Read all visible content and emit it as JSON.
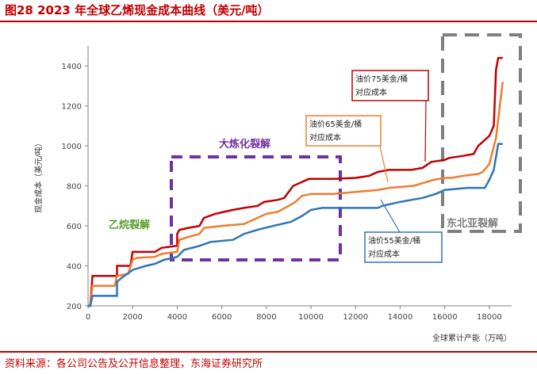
{
  "figure": {
    "title": "图28  2023 年全球乙烯现金成本曲线（美元/吨）",
    "source": "资料来源：各公司公告及公开信息整理，东海证券研究所"
  },
  "colors": {
    "accent": "#c00000",
    "series_75": "#c00000",
    "series_65": "#ed7d31",
    "series_55": "#2e75b6",
    "region_refining": "#7030a0",
    "region_ethane": "#5b9b2a",
    "region_ne_asia": "#7f7f7f"
  },
  "chart_data": {
    "type": "line",
    "xlabel": "全球累计产能（万吨）",
    "ylabel": "现金成本（美元/吨）",
    "xlim": [
      0,
      19000
    ],
    "ylim": [
      200,
      1500
    ],
    "xticks": [
      0,
      2000,
      4000,
      6000,
      8000,
      10000,
      12000,
      14000,
      16000,
      18000
    ],
    "yticks": [
      200,
      400,
      600,
      800,
      1000,
      1200,
      1400
    ],
    "grid": false,
    "series": [
      {
        "key": "s75",
        "name": "油价75美金/桶对应成本",
        "label_lines": [
          "油价75美金/桶",
          "对应成本"
        ],
        "points": [
          [
            0,
            200
          ],
          [
            100,
            200
          ],
          [
            200,
            350
          ],
          [
            1300,
            350
          ],
          [
            1300,
            400
          ],
          [
            1900,
            400
          ],
          [
            2000,
            470
          ],
          [
            3000,
            470
          ],
          [
            3300,
            490
          ],
          [
            3600,
            495
          ],
          [
            4000,
            500
          ],
          [
            4000,
            560
          ],
          [
            4100,
            580
          ],
          [
            4500,
            590
          ],
          [
            5000,
            600
          ],
          [
            5200,
            640
          ],
          [
            5700,
            660
          ],
          [
            6100,
            670
          ],
          [
            6500,
            680
          ],
          [
            7000,
            690
          ],
          [
            7600,
            700
          ],
          [
            7900,
            720
          ],
          [
            8500,
            730
          ],
          [
            8800,
            740
          ],
          [
            9200,
            800
          ],
          [
            9600,
            820
          ],
          [
            9900,
            835
          ],
          [
            10500,
            835
          ],
          [
            11000,
            835
          ],
          [
            12000,
            840
          ],
          [
            12600,
            850
          ],
          [
            13000,
            870
          ],
          [
            13500,
            880
          ],
          [
            14500,
            880
          ],
          [
            15000,
            890
          ],
          [
            15400,
            920
          ],
          [
            16000,
            930
          ],
          [
            16200,
            940
          ],
          [
            16800,
            950
          ],
          [
            17300,
            960
          ],
          [
            17500,
            1000
          ],
          [
            18000,
            1050
          ],
          [
            18200,
            1100
          ],
          [
            18300,
            1380
          ],
          [
            18400,
            1440
          ],
          [
            18600,
            1440
          ]
        ]
      },
      {
        "key": "s65",
        "name": "油价65美金/桶对应成本",
        "label_lines": [
          "油价65美金/桶",
          "对应成本"
        ],
        "points": [
          [
            0,
            200
          ],
          [
            100,
            200
          ],
          [
            200,
            300
          ],
          [
            1200,
            300
          ],
          [
            1300,
            350
          ],
          [
            1800,
            360
          ],
          [
            2000,
            430
          ],
          [
            2200,
            440
          ],
          [
            3000,
            445
          ],
          [
            3300,
            460
          ],
          [
            4000,
            470
          ],
          [
            4100,
            530
          ],
          [
            4500,
            545
          ],
          [
            5000,
            560
          ],
          [
            5200,
            590
          ],
          [
            6000,
            600
          ],
          [
            7000,
            610
          ],
          [
            7600,
            640
          ],
          [
            8000,
            660
          ],
          [
            8500,
            670
          ],
          [
            9000,
            700
          ],
          [
            9300,
            720
          ],
          [
            9600,
            750
          ],
          [
            10000,
            760
          ],
          [
            11000,
            760
          ],
          [
            12000,
            770
          ],
          [
            13000,
            780
          ],
          [
            13500,
            790
          ],
          [
            14600,
            800
          ],
          [
            15500,
            830
          ],
          [
            16000,
            840
          ],
          [
            16300,
            840
          ],
          [
            16800,
            850
          ],
          [
            17500,
            860
          ],
          [
            17700,
            870
          ],
          [
            18000,
            910
          ],
          [
            18300,
            1040
          ],
          [
            18600,
            1320
          ]
        ]
      },
      {
        "key": "s55",
        "name": "油价55美金/桶对应成本",
        "label_lines": [
          "油价55美金/桶",
          "对应成本"
        ],
        "points": [
          [
            0,
            200
          ],
          [
            100,
            200
          ],
          [
            200,
            250
          ],
          [
            1300,
            250
          ],
          [
            1300,
            320
          ],
          [
            1500,
            340
          ],
          [
            2000,
            380
          ],
          [
            2600,
            400
          ],
          [
            3000,
            410
          ],
          [
            3400,
            430
          ],
          [
            4000,
            445
          ],
          [
            4300,
            480
          ],
          [
            5000,
            500
          ],
          [
            5500,
            520
          ],
          [
            6500,
            530
          ],
          [
            7000,
            560
          ],
          [
            7600,
            580
          ],
          [
            8300,
            600
          ],
          [
            9100,
            620
          ],
          [
            9600,
            650
          ],
          [
            10000,
            680
          ],
          [
            10500,
            690
          ],
          [
            11000,
            690
          ],
          [
            13000,
            690
          ],
          [
            13200,
            700
          ],
          [
            13600,
            710
          ],
          [
            14000,
            720
          ],
          [
            14500,
            730
          ],
          [
            15000,
            740
          ],
          [
            15600,
            760
          ],
          [
            16000,
            780
          ],
          [
            17000,
            790
          ],
          [
            17800,
            790
          ],
          [
            18000,
            830
          ],
          [
            18200,
            880
          ],
          [
            18400,
            1010
          ],
          [
            18600,
            1010
          ]
        ]
      }
    ],
    "regions": [
      {
        "key": "ethane",
        "label": "乙烷裂解"
      },
      {
        "key": "refining",
        "label": "大炼化裂解"
      },
      {
        "key": "ne_asia",
        "label": "东北亚裂解"
      }
    ]
  }
}
